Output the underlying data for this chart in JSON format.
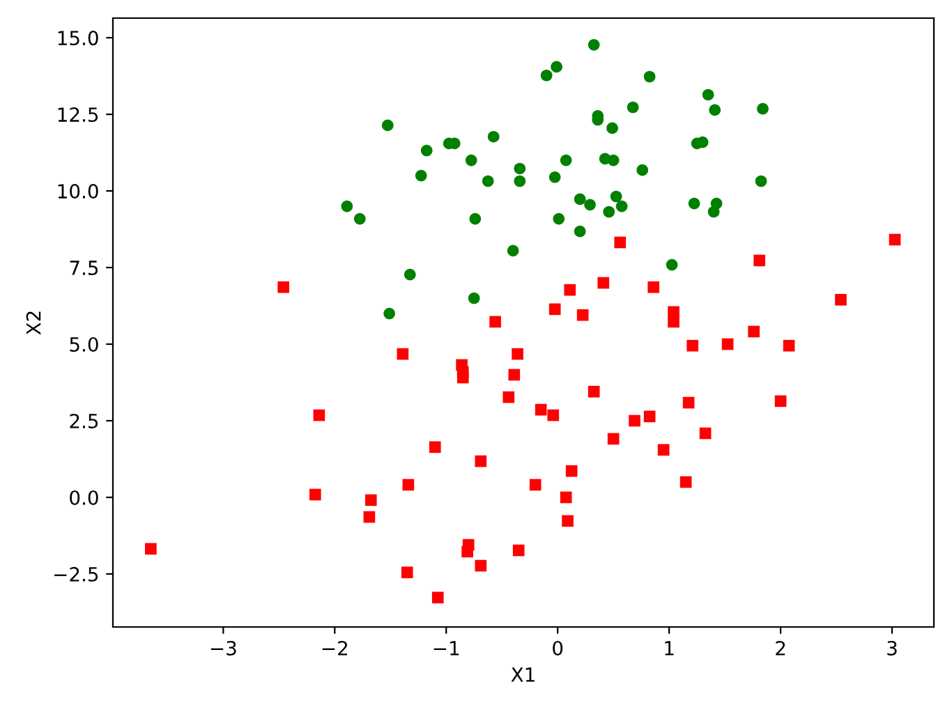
{
  "chart_data": {
    "type": "scatter",
    "xlabel": "X1",
    "ylabel": "X2",
    "grid": false,
    "legend": false,
    "xlim": [
      -3.99,
      3.375
    ],
    "ylim": [
      -4.23,
      15.64
    ],
    "xticks": [
      {
        "value": -3,
        "label": "−3"
      },
      {
        "value": -2,
        "label": "−2"
      },
      {
        "value": -1,
        "label": "−1"
      },
      0,
      1,
      2,
      3
    ],
    "yticks": [
      {
        "value": -2.5,
        "label": "−2.5"
      },
      {
        "value": 0,
        "label": "0.0"
      },
      {
        "value": 2.5,
        "label": "2.5"
      },
      {
        "value": 5,
        "label": "5.0"
      },
      {
        "value": 7.5,
        "label": "7.5"
      },
      {
        "value": 10,
        "label": "10.0"
      },
      {
        "value": 12.5,
        "label": "12.5"
      },
      {
        "value": 15,
        "label": "15.0"
      }
    ],
    "series": [
      {
        "color": "#008000",
        "marker": "circle",
        "x": [
          -1.525,
          -1.175,
          -1.225,
          -0.975,
          -0.925,
          -0.575,
          -0.775,
          -0.625,
          -0.34,
          -0.34,
          -0.1,
          -0.01,
          0.325,
          0.36,
          0.36,
          0.49,
          0.675,
          0.825,
          1.35,
          1.41,
          1.84,
          1.25,
          1.3,
          0.075,
          0.425,
          0.5,
          -0.025,
          0.76,
          1.825,
          -1.89,
          -1.775,
          -0.74,
          0.01,
          0.2,
          0.29,
          0.525,
          0.46,
          0.575,
          0.2,
          1.225,
          1.425,
          1.4,
          -0.4,
          1.025,
          -1.325,
          -1.51,
          -0.75
        ],
        "values": [
          12.14,
          11.32,
          10.5,
          11.55,
          11.55,
          11.77,
          11.0,
          10.32,
          10.73,
          10.32,
          13.77,
          14.05,
          14.77,
          12.45,
          12.32,
          12.05,
          12.73,
          13.73,
          13.14,
          12.64,
          12.68,
          11.55,
          11.59,
          11.0,
          11.05,
          11.0,
          10.45,
          10.68,
          10.32,
          9.5,
          9.09,
          9.09,
          9.09,
          9.73,
          9.55,
          9.82,
          9.32,
          9.5,
          8.68,
          9.59,
          9.59,
          9.32,
          8.05,
          7.59,
          7.27,
          6.0,
          6.5
        ]
      },
      {
        "color": "#ff0000",
        "marker": "square",
        "x": [
          -3.65,
          -2.46,
          -2.14,
          -2.175,
          -1.675,
          -1.69,
          -1.39,
          -1.34,
          -1.35,
          -1.1,
          -1.075,
          -0.86,
          -0.85,
          -0.85,
          -0.8,
          -0.81,
          -0.69,
          -0.69,
          -0.56,
          -0.44,
          -0.39,
          -0.36,
          -0.35,
          -0.2,
          -0.15,
          -0.04,
          -0.025,
          0.11,
          0.225,
          0.075,
          0.09,
          0.125,
          0.325,
          0.41,
          0.56,
          0.5,
          0.69,
          0.825,
          0.86,
          0.95,
          1.04,
          1.04,
          1.21,
          1.175,
          1.15,
          1.325,
          1.525,
          1.76,
          1.81,
          2.0,
          2.075,
          2.54,
          3.025
        ],
        "values": [
          -1.68,
          6.86,
          2.68,
          0.09,
          -0.09,
          -0.64,
          4.68,
          0.41,
          -2.45,
          1.64,
          -3.27,
          4.32,
          4.09,
          3.91,
          -1.55,
          -1.77,
          -2.23,
          1.18,
          5.73,
          3.27,
          4.0,
          4.68,
          -1.73,
          0.41,
          2.86,
          2.68,
          6.14,
          6.77,
          5.95,
          0.0,
          -0.77,
          0.86,
          3.45,
          7.0,
          8.32,
          1.91,
          2.5,
          2.64,
          6.86,
          1.55,
          6.05,
          5.73,
          4.95,
          3.09,
          0.5,
          2.09,
          5.0,
          5.41,
          7.73,
          3.14,
          4.95,
          6.45,
          8.41
        ]
      }
    ]
  }
}
